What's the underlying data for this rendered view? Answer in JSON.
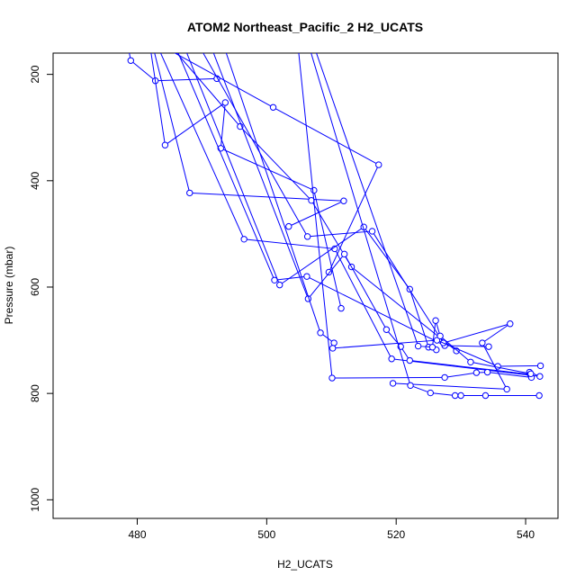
{
  "chart_data": {
    "type": "line",
    "title": "ATOM2 Northeast_Pacific_2 H2_UCATS",
    "xlabel": "H2_UCATS",
    "ylabel": "Pressure (mbar)",
    "xlim": [
      467,
      545
    ],
    "ylim": [
      1035,
      160
    ],
    "y_inverted": true,
    "x_ticks": [
      480,
      500,
      520,
      540
    ],
    "y_ticks": [
      200,
      400,
      600,
      800,
      1000
    ],
    "line_color": "#0000ff",
    "marker": "open-circle",
    "series": [
      {
        "x": [
          479.0,
          482.8,
          492.3
        ],
        "y": [
          174,
          212,
          208
        ]
      },
      {
        "x": [
          501.0,
          517.3,
          509.6
        ],
        "y": [
          262,
          370,
          572
        ]
      },
      {
        "x": [
          484.3,
          493.6,
          492.9,
          507.3,
          511.5
        ],
        "y": [
          333,
          253,
          339,
          418,
          640
        ]
      },
      {
        "x": [
          488.1,
          511.9,
          503.4
        ],
        "y": [
          423,
          438,
          486
        ]
      },
      {
        "x": [
          495.9,
          506.9,
          513.1,
          529.3
        ],
        "y": [
          298,
          437,
          562,
          720
        ]
      },
      {
        "x": [
          496.5,
          510.5,
          519.3,
          542.2,
          540.6
        ],
        "y": [
          510,
          528,
          735,
          768,
          760
        ]
      },
      {
        "x": [
          501.2,
          506.2,
          527.5,
          534.3
        ],
        "y": [
          587,
          580,
          710,
          712
        ]
      },
      {
        "x": [
          502.0,
          515.0,
          522.1,
          525.0,
          526.2
        ],
        "y": [
          596,
          487,
          604,
          713,
          718
        ]
      },
      {
        "x": [
          506.3,
          516.3,
          527.3,
          537.6,
          533.3,
          537.1,
          519.5
        ],
        "y": [
          505,
          495,
          705,
          669,
          705,
          792,
          781
        ]
      },
      {
        "x": [
          506.4,
          512.0,
          518.5,
          520.7,
          522.1,
          540.7
        ],
        "y": [
          622,
          538,
          680,
          712,
          738,
          764
        ]
      },
      {
        "x": [
          508.3,
          510.4,
          510.2,
          526.3,
          535.7,
          542.3
        ],
        "y": [
          686,
          705,
          715,
          700,
          749,
          748
        ]
      },
      {
        "x": [
          510.1,
          527.5,
          532.4,
          534.1,
          540.9
        ],
        "y": [
          771,
          770,
          761,
          760,
          770
        ]
      },
      {
        "x": [
          522.2,
          525.3,
          529.1,
          530.0,
          533.8,
          542.1
        ],
        "y": [
          785,
          799,
          804,
          804,
          804,
          804
        ]
      },
      {
        "x": [
          523.4,
          525.6,
          526.1,
          526.8,
          531.5,
          540.8
        ],
        "y": [
          711,
          713,
          663,
          692,
          741,
          763
        ]
      }
    ]
  }
}
